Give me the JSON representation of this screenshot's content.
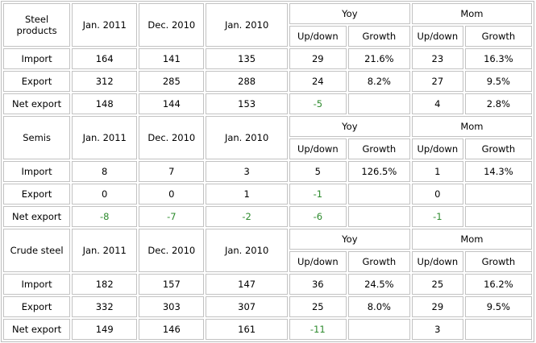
{
  "headers": {
    "col1": "Jan. 2011",
    "col2": "Dec. 2010",
    "col3": "Jan. 2010",
    "yoy": "Yoy",
    "mom": "Mom",
    "updown": "Up/down",
    "growth": "Growth"
  },
  "sections": [
    {
      "title": "Steel products",
      "rows": [
        {
          "label": "Import",
          "jan2011": "164",
          "dec2010": "141",
          "jan2010": "135",
          "yoy_updown": "29",
          "yoy_growth": "21.6%",
          "mom_updown": "23",
          "mom_growth": "16.3%"
        },
        {
          "label": "Export",
          "jan2011": "312",
          "dec2010": "285",
          "jan2010": "288",
          "yoy_updown": "24",
          "yoy_growth": "8.2%",
          "mom_updown": "27",
          "mom_growth": "9.5%"
        },
        {
          "label": "Net export",
          "jan2011": "148",
          "dec2010": "144",
          "jan2010": "153",
          "yoy_updown": "-5",
          "yoy_growth": "",
          "mom_updown": "4",
          "mom_growth": "2.8%"
        }
      ]
    },
    {
      "title": "Semis",
      "rows": [
        {
          "label": "Import",
          "jan2011": "8",
          "dec2010": "7",
          "jan2010": "3",
          "yoy_updown": "5",
          "yoy_growth": "126.5%",
          "mom_updown": "1",
          "mom_growth": "14.3%"
        },
        {
          "label": "Export",
          "jan2011": "0",
          "dec2010": "0",
          "jan2010": "1",
          "yoy_updown": "-1",
          "yoy_growth": "",
          "mom_updown": "0",
          "mom_growth": ""
        },
        {
          "label": "Net export",
          "jan2011": "-8",
          "dec2010": "-7",
          "jan2010": "-2",
          "yoy_updown": "-6",
          "yoy_growth": "",
          "mom_updown": "-1",
          "mom_growth": ""
        }
      ]
    },
    {
      "title": "Crude steel",
      "rows": [
        {
          "label": "Import",
          "jan2011": "182",
          "dec2010": "157",
          "jan2010": "147",
          "yoy_updown": "36",
          "yoy_growth": "24.5%",
          "mom_updown": "25",
          "mom_growth": "16.2%"
        },
        {
          "label": "Export",
          "jan2011": "332",
          "dec2010": "303",
          "jan2010": "307",
          "yoy_updown": "25",
          "yoy_growth": "8.0%",
          "mom_updown": "29",
          "mom_growth": "9.5%"
        },
        {
          "label": "Net export",
          "jan2011": "149",
          "dec2010": "146",
          "jan2010": "161",
          "yoy_updown": "-11",
          "yoy_growth": "",
          "mom_updown": "3",
          "mom_growth": ""
        }
      ]
    }
  ],
  "colors": {
    "negative_text": "#2e8b2e",
    "cell_border": "#c2c2c2"
  }
}
